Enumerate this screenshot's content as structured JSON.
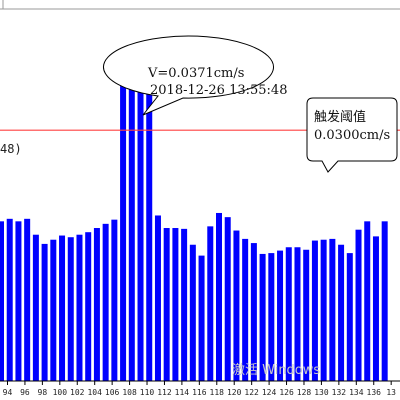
{
  "chart_data": {
    "type": "bar",
    "categories": [
      94,
      95,
      96,
      97,
      98,
      99,
      100,
      101,
      102,
      103,
      104,
      105,
      106,
      107,
      108,
      109,
      110,
      111,
      112,
      113,
      114,
      115,
      116,
      117,
      118,
      119,
      120,
      121,
      122,
      123,
      124,
      125,
      126,
      127,
      128,
      129,
      130,
      131,
      132,
      133,
      134,
      135,
      136,
      137,
      138
    ],
    "values": [
      0.0191,
      0.0194,
      0.0191,
      0.0194,
      0.0175,
      0.0164,
      0.0169,
      0.0174,
      0.0172,
      0.0175,
      0.0178,
      0.0183,
      0.0188,
      0.0193,
      0.0358,
      0.0361,
      0.0371,
      0.0351,
      0.0198,
      0.0183,
      0.0183,
      0.0182,
      0.0163,
      0.015,
      0.0185,
      0.0201,
      0.0196,
      0.018,
      0.017,
      0.0165,
      0.0152,
      0.0153,
      0.0156,
      0.016,
      0.016,
      0.0157,
      0.0168,
      0.0169,
      0.017,
      0.0163,
      0.0153,
      0.0181,
      0.0191,
      0.0173,
      0.0191
    ],
    "x_tick_labels": [
      "94",
      "96",
      "98",
      "100",
      "102",
      "104",
      "106",
      "108",
      "110",
      "112",
      "114",
      "116",
      "118",
      "120",
      "122",
      "124",
      "126",
      "128",
      "130",
      "132",
      "134",
      "136",
      "13"
    ],
    "ylim": [
      0,
      0.0445
    ],
    "bar_color": "#0000ff",
    "threshold": {
      "value": 0.03,
      "color": "#ff4040"
    },
    "left_label_fragment": "48)",
    "annotations": {
      "peak": {
        "line1": "V=0.0371cm/s",
        "line2": "2018-12-26 13:55:48"
      },
      "threshold_box": {
        "line1": "触发阈值",
        "line2": "0.0300cm/s"
      }
    },
    "watermark": "激活 Windows"
  }
}
